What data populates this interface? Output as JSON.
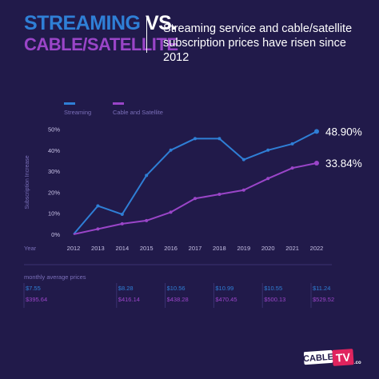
{
  "header": {
    "title_part1": "STREAMING",
    "title_vs": "VS.",
    "title_line2": "CABLE/SATELLITE",
    "subtitle": "Streaming service and cable/satellite subscription prices have risen since 2012"
  },
  "logo": {
    "text": "CABLE TV.com"
  },
  "colors": {
    "background": "#211a4a",
    "streaming": "#2f7fd6",
    "cable": "#9a45c8",
    "axis_text": "#c8c2e6",
    "muted": "#7a6fb8"
  },
  "chart_data": {
    "type": "line",
    "x": [
      "2012",
      "2013",
      "2014",
      "2015",
      "2016",
      "2017",
      "2018",
      "2019",
      "2020",
      "2021",
      "2022"
    ],
    "xlabel": "Year",
    "ylabel": "Subscription Increase",
    "ylim": [
      0,
      50
    ],
    "yticks": [
      "0%",
      "10%",
      "20%",
      "30%",
      "40%",
      "50%"
    ],
    "legend_position": "top-left",
    "grid": false,
    "series": [
      {
        "name": "Streaming",
        "color": "#2f7fd6",
        "values": [
          0,
          13.5,
          9.5,
          28,
          40,
          45.5,
          45.5,
          35.5,
          40,
          43,
          48.9
        ],
        "end_label": "48.90%"
      },
      {
        "name": "Cable and Satellite",
        "color": "#9a45c8",
        "values": [
          0,
          2.5,
          5,
          6.5,
          10.5,
          17,
          19,
          21,
          26.5,
          31.5,
          33.84
        ],
        "end_label": "33.84%"
      }
    ],
    "prices_label": "monthly average prices",
    "price_years": [
      "2012",
      "2014",
      "2016",
      "2018",
      "2020",
      "2022"
    ],
    "streaming_prices": [
      "$7.55",
      "$8.28",
      "$10.56",
      "$10.99",
      "$10.55",
      "$11.24"
    ],
    "cable_prices": [
      "$395.64",
      "$416.14",
      "$438.28",
      "$470.45",
      "$500.13",
      "$529.52"
    ]
  }
}
